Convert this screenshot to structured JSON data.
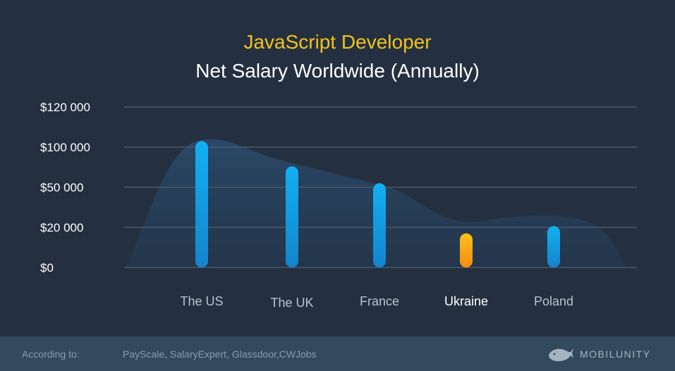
{
  "titles": {
    "line1": "JavaScript Developer",
    "line2": "Net Salary Worldwide (Annually)"
  },
  "footer": {
    "label": "According to:",
    "sources": "PayScale, SalaryExpert, Glassdoor,CWJobs",
    "brand": "MOBILUNITY"
  },
  "colors": {
    "background": "#243040",
    "footer": "#33495e",
    "title_accent": "#f2c21b",
    "bar_default_top": "#12b0f2",
    "bar_default_bottom": "#1484cc",
    "bar_highlight_top": "#ffc21a",
    "bar_highlight_bottom": "#f58a12",
    "grid": "#4a5868",
    "area": "#2a4a6a"
  },
  "chart_data": {
    "type": "bar",
    "y_tick_labels": [
      "$0",
      "$20 000",
      "$50 000",
      "$100 000",
      "$120 000"
    ],
    "categories": [
      "The US",
      "The UK",
      "France",
      "Ukraine",
      "Poland"
    ],
    "highlight_category": "Ukraine",
    "values": [
      103000,
      76000,
      55000,
      17000,
      21000
    ],
    "grid": true,
    "legend": "none"
  }
}
